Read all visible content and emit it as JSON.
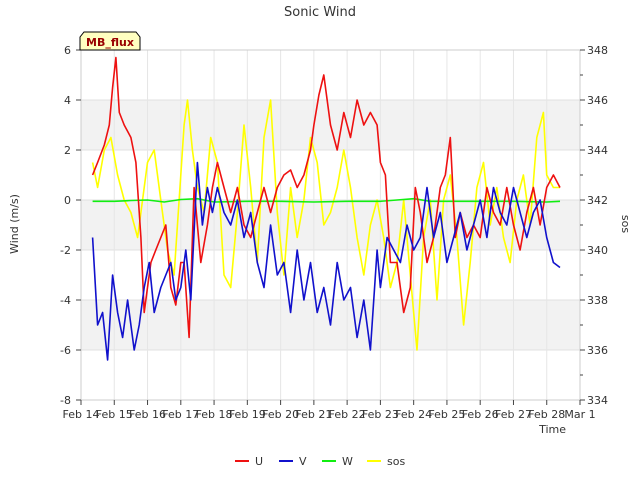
{
  "chart_data": {
    "type": "line",
    "title": "Sonic Wind",
    "xlabel": "Time",
    "ylabel": "Wind (m/s)",
    "y2label": "sos",
    "badge": "MB_flux",
    "xlim": [
      0,
      15
    ],
    "ylim": [
      -8,
      6
    ],
    "y2lim": [
      334,
      348
    ],
    "x_ticks": [
      {
        "v": 0,
        "label": "Feb 14"
      },
      {
        "v": 1,
        "label": "Feb 15"
      },
      {
        "v": 2,
        "label": "Feb 16"
      },
      {
        "v": 3,
        "label": "Feb 17"
      },
      {
        "v": 4,
        "label": "Feb 18"
      },
      {
        "v": 5,
        "label": "Feb 19"
      },
      {
        "v": 6,
        "label": "Feb 20"
      },
      {
        "v": 7,
        "label": "Feb 21"
      },
      {
        "v": 8,
        "label": "Feb 22"
      },
      {
        "v": 9,
        "label": "Feb 23"
      },
      {
        "v": 10,
        "label": "Feb 24"
      },
      {
        "v": 11,
        "label": "Feb 25"
      },
      {
        "v": 12,
        "label": "Feb 26"
      },
      {
        "v": 13,
        "label": "Feb 27"
      },
      {
        "v": 14,
        "label": "Feb 28"
      },
      {
        "v": 15,
        "label": "Mar 1"
      }
    ],
    "y_ticks": [
      -8,
      -6,
      -4,
      -2,
      0,
      2,
      4,
      6
    ],
    "y2_ticks": [
      334,
      336,
      338,
      340,
      342,
      344,
      346,
      348
    ],
    "series": [
      {
        "name": "U",
        "axis": "left",
        "color": "#ee1111",
        "x": [
          0.35,
          0.5,
          0.7,
          0.85,
          0.95,
          1.05,
          1.15,
          1.3,
          1.5,
          1.65,
          1.8,
          1.9,
          2.0,
          2.1,
          2.25,
          2.4,
          2.55,
          2.7,
          2.85,
          3.0,
          3.1,
          3.25,
          3.4,
          3.5,
          3.6,
          3.8,
          3.95,
          4.1,
          4.3,
          4.5,
          4.7,
          4.9,
          5.1,
          5.3,
          5.5,
          5.7,
          5.9,
          6.1,
          6.3,
          6.5,
          6.7,
          6.9,
          7.0,
          7.15,
          7.3,
          7.5,
          7.7,
          7.9,
          8.1,
          8.3,
          8.5,
          8.7,
          8.9,
          9.0,
          9.15,
          9.3,
          9.5,
          9.7,
          9.9,
          10.05,
          10.2,
          10.4,
          10.6,
          10.8,
          10.95,
          11.1,
          11.25,
          11.4,
          11.6,
          11.8,
          12.0,
          12.2,
          12.4,
          12.6,
          12.8,
          13.0,
          13.2,
          13.4,
          13.6,
          13.8,
          14.0,
          14.2,
          14.4
        ],
        "y": [
          1.0,
          1.5,
          2.2,
          3.0,
          4.5,
          5.7,
          3.5,
          3.0,
          2.5,
          1.5,
          -1.5,
          -4.5,
          -3.5,
          -2.5,
          -2.0,
          -1.5,
          -1.0,
          -3.5,
          -4.2,
          -2.5,
          -2.5,
          -5.5,
          0.5,
          -1.0,
          -2.5,
          -1.0,
          0.5,
          1.5,
          0.5,
          -0.5,
          0.5,
          -1.0,
          -1.5,
          -0.5,
          0.5,
          -0.5,
          0.5,
          1.0,
          1.2,
          0.5,
          1.0,
          2.0,
          3.0,
          4.2,
          5.0,
          3.0,
          2.0,
          3.5,
          2.5,
          4.0,
          3.0,
          3.5,
          3.0,
          1.5,
          1.0,
          -2.5,
          -2.5,
          -4.5,
          -3.5,
          0.5,
          -0.5,
          -2.5,
          -1.5,
          0.5,
          1.0,
          2.5,
          -1.5,
          -0.5,
          -1.5,
          -1.0,
          -1.5,
          0.5,
          -0.5,
          -1.0,
          0.5,
          -1.0,
          -2.0,
          -0.5,
          0.5,
          -1.0,
          0.5,
          1.0,
          0.5
        ]
      },
      {
        "name": "V",
        "axis": "left",
        "color": "#1111cc",
        "x": [
          0.35,
          0.5,
          0.65,
          0.8,
          0.95,
          1.1,
          1.25,
          1.4,
          1.6,
          1.75,
          1.9,
          2.05,
          2.2,
          2.4,
          2.55,
          2.7,
          2.85,
          3.0,
          3.15,
          3.3,
          3.5,
          3.65,
          3.8,
          3.95,
          4.1,
          4.3,
          4.5,
          4.7,
          4.9,
          5.1,
          5.3,
          5.5,
          5.7,
          5.9,
          6.1,
          6.3,
          6.5,
          6.7,
          6.9,
          7.1,
          7.3,
          7.5,
          7.7,
          7.9,
          8.1,
          8.3,
          8.5,
          8.7,
          8.9,
          9.0,
          9.2,
          9.4,
          9.6,
          9.8,
          10.0,
          10.2,
          10.4,
          10.6,
          10.8,
          11.0,
          11.2,
          11.4,
          11.6,
          11.8,
          12.0,
          12.2,
          12.4,
          12.6,
          12.8,
          13.0,
          13.2,
          13.4,
          13.6,
          13.8,
          14.0,
          14.2,
          14.4
        ],
        "y": [
          -1.5,
          -5.0,
          -4.5,
          -6.4,
          -3.0,
          -4.5,
          -5.5,
          -4.0,
          -6.0,
          -5.0,
          -3.5,
          -2.5,
          -4.5,
          -3.5,
          -3.0,
          -2.5,
          -4.0,
          -3.5,
          -2.0,
          -4.0,
          1.5,
          -1.0,
          0.5,
          -0.5,
          0.5,
          -0.5,
          -1.0,
          0.0,
          -1.5,
          -0.5,
          -2.5,
          -3.5,
          -1.0,
          -3.0,
          -2.5,
          -4.5,
          -2.0,
          -4.0,
          -2.5,
          -4.5,
          -3.5,
          -5.0,
          -2.5,
          -4.0,
          -3.5,
          -5.5,
          -4.0,
          -6.0,
          -2.0,
          -3.5,
          -1.5,
          -2.0,
          -2.5,
          -1.0,
          -2.0,
          -1.5,
          0.5,
          -1.5,
          -0.5,
          -2.5,
          -1.5,
          -0.5,
          -2.0,
          -1.0,
          0.0,
          -1.5,
          0.5,
          -0.5,
          -1.0,
          0.5,
          -0.5,
          -1.5,
          -0.5,
          0.0,
          -1.5,
          -2.5,
          -2.7
        ]
      },
      {
        "name": "W",
        "axis": "left",
        "color": "#11ee11",
        "x": [
          0.35,
          1.0,
          1.5,
          2.0,
          2.5,
          3.0,
          3.5,
          4.0,
          5.0,
          6.0,
          7.0,
          8.0,
          9.0,
          9.5,
          10.0,
          10.5,
          11.0,
          12.0,
          13.0,
          14.0,
          14.4
        ],
        "y": [
          -0.05,
          -0.05,
          -0.02,
          0.0,
          -0.08,
          0.02,
          0.05,
          -0.08,
          -0.05,
          -0.05,
          -0.08,
          -0.05,
          -0.05,
          0.0,
          0.05,
          -0.05,
          -0.05,
          -0.05,
          -0.05,
          -0.08,
          -0.05
        ]
      },
      {
        "name": "sos",
        "axis": "right",
        "color": "#ffff00",
        "x": [
          0.35,
          0.5,
          0.7,
          0.9,
          1.1,
          1.3,
          1.5,
          1.7,
          1.9,
          2.0,
          2.2,
          2.4,
          2.6,
          2.8,
          3.0,
          3.1,
          3.2,
          3.35,
          3.5,
          3.7,
          3.9,
          4.1,
          4.3,
          4.5,
          4.7,
          4.9,
          5.1,
          5.3,
          5.5,
          5.7,
          5.9,
          6.1,
          6.3,
          6.5,
          6.7,
          6.9,
          7.1,
          7.3,
          7.5,
          7.7,
          7.9,
          8.1,
          8.3,
          8.5,
          8.7,
          8.9,
          9.1,
          9.3,
          9.5,
          9.7,
          9.9,
          10.1,
          10.3,
          10.5,
          10.7,
          10.9,
          11.1,
          11.3,
          11.5,
          11.7,
          11.9,
          12.1,
          12.3,
          12.5,
          12.7,
          12.9,
          13.1,
          13.3,
          13.5,
          13.7,
          13.9,
          14.0,
          14.2,
          14.4
        ],
        "y": [
          343.5,
          342.5,
          344.0,
          344.5,
          343.0,
          342.0,
          341.5,
          340.5,
          342.5,
          343.5,
          344.0,
          342.0,
          340.0,
          339.0,
          343.0,
          345.0,
          346.0,
          344.0,
          342.5,
          341.5,
          344.5,
          343.5,
          339.0,
          338.5,
          341.5,
          345.0,
          342.5,
          339.5,
          344.5,
          346.0,
          341.5,
          339.0,
          342.5,
          340.5,
          342.0,
          344.5,
          343.5,
          341.0,
          341.5,
          342.5,
          344.0,
          342.5,
          340.5,
          339.0,
          341.0,
          342.0,
          340.5,
          338.5,
          339.5,
          342.0,
          339.0,
          336.0,
          340.5,
          342.0,
          338.0,
          342.0,
          343.0,
          340.5,
          337.0,
          339.5,
          342.5,
          343.5,
          341.0,
          342.5,
          340.5,
          339.5,
          342.0,
          343.0,
          341.0,
          344.5,
          345.5,
          343.0,
          342.5,
          342.5
        ]
      }
    ]
  }
}
